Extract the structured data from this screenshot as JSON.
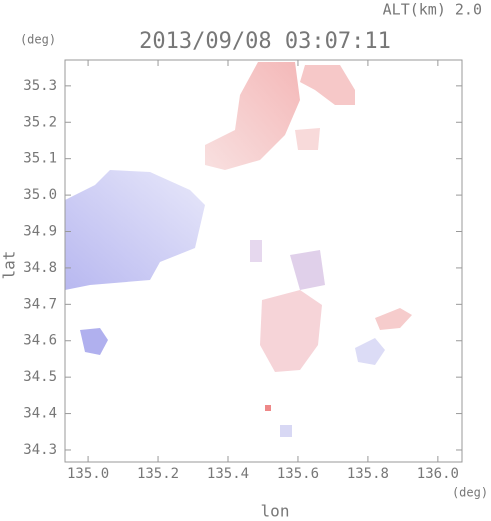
{
  "chart_data": {
    "type": "map",
    "title": "2013/09/08 03:07:11",
    "subtitle": "ALT(km) 2.0",
    "x_unit": "(deg)",
    "y_unit": "(deg)",
    "xlabel": "lon",
    "ylabel": "lat",
    "xlim": [
      134.934,
      136.069
    ],
    "ylim": [
      34.267,
      35.371
    ],
    "xticks": [
      {
        "value": 135,
        "label": "135.0"
      },
      135.2,
      135.4,
      135.6,
      135.8,
      {
        "value": 136,
        "label": "136.0"
      }
    ],
    "yticks": [
      34.3,
      34.4,
      34.5,
      34.6,
      34.7,
      34.8,
      34.9,
      {
        "value": 35,
        "label": "35.0"
      },
      35.1,
      35.2,
      35.3
    ]
  }
}
